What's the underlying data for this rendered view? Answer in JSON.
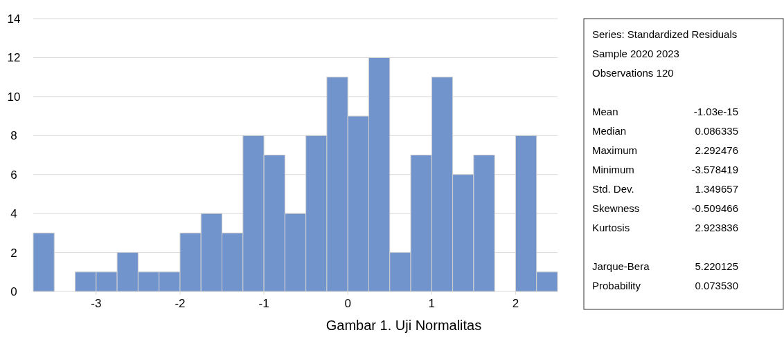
{
  "chart_data": {
    "type": "histogram",
    "title": "Gambar 1. Uji Normalitas",
    "bins": [
      -3.75,
      -3.5,
      -3.25,
      -3,
      -2.75,
      -2.5,
      -2.25,
      -2,
      -1.75,
      -1.5,
      -1.25,
      -1,
      -0.75,
      -0.5,
      -0.25,
      0,
      0.25,
      0.5,
      0.75,
      1,
      1.25,
      1.5,
      1.75,
      2,
      2.25,
      2.5
    ],
    "values": [
      3,
      0,
      1,
      1,
      2,
      1,
      1,
      3,
      4,
      3,
      8,
      7,
      4,
      8,
      11,
      9,
      12,
      2,
      7,
      11,
      6,
      7,
      0,
      8,
      1
    ],
    "color": "#7194cc",
    "xlim": [
      -3.75,
      2.5
    ],
    "xticks": [
      -3,
      -2,
      -1,
      0,
      1,
      2
    ],
    "ylim": [
      0,
      14
    ],
    "yticks": [
      0,
      2,
      4,
      6,
      8,
      10,
      12,
      14
    ],
    "grid": "y",
    "annotations": [
      "Series: Standardized Residuals",
      "Sample 2020 2023",
      "Observations 120",
      "Mean\t-1.03e-15",
      "Median\t0.086335",
      "Maximum\t2.292476",
      "Minimum\t-3.578419",
      "Std. Dev.\t1.349657",
      "Skewness\t-0.509466",
      "Kurtosis\t2.923836",
      "Jarque-Bera\t5.220125",
      "Probability\t0.073530"
    ]
  }
}
